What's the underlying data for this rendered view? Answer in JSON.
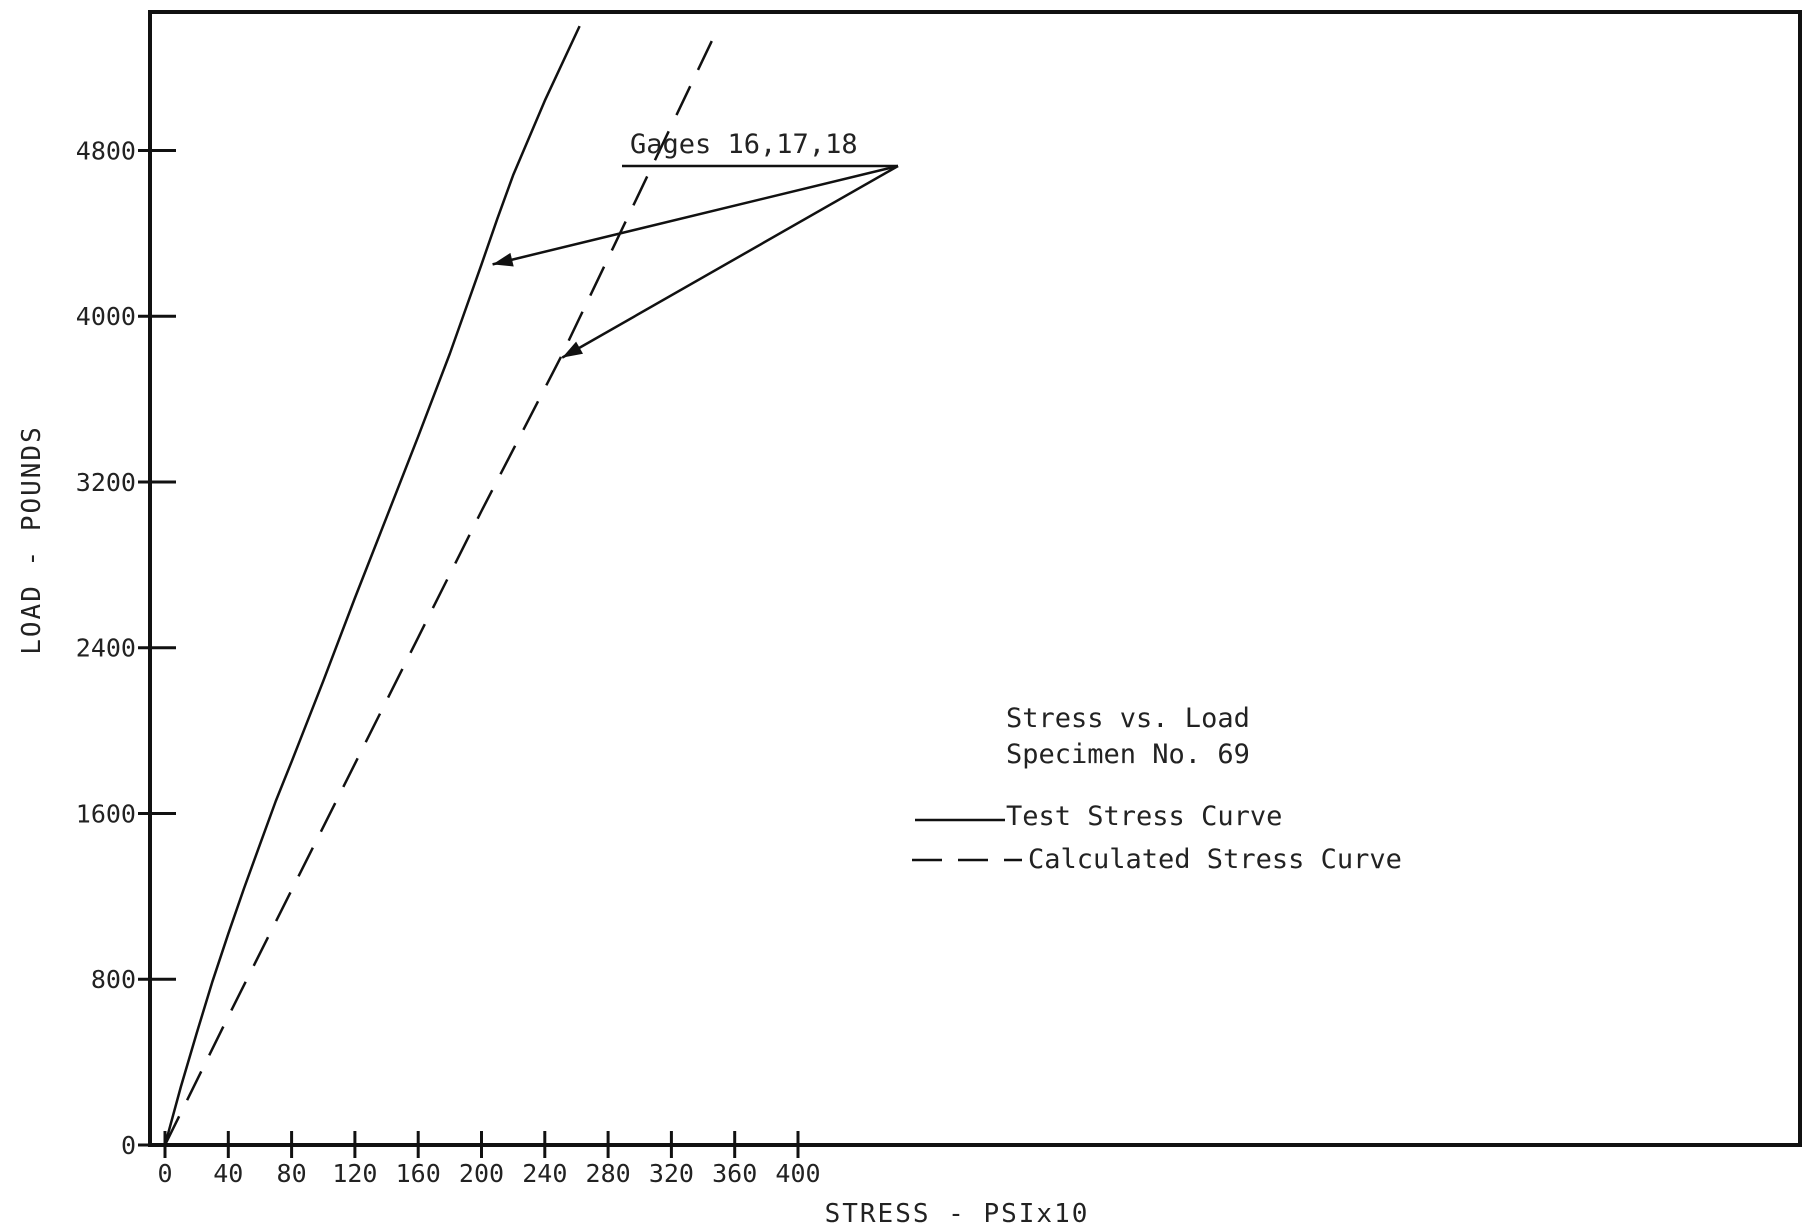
{
  "chart_data": {
    "type": "line",
    "xlabel": "STRESS - PSIx10",
    "ylabel": "LOAD - POUNDS",
    "xlim": [
      0,
      440
    ],
    "ylim": [
      0,
      5400
    ],
    "x_ticks": [
      "0",
      "40",
      "80",
      "120",
      "160",
      "200",
      "240",
      "280",
      "320",
      "360",
      "400"
    ],
    "y_ticks": [
      "0",
      "800",
      "1600",
      "2400",
      "3200",
      "4000",
      "4800"
    ],
    "grid": false,
    "legend_position": "center-right",
    "info_text": [
      "Stress vs. Load",
      "Specimen No. 69"
    ],
    "annotation": {
      "text": "Gages 16,17,18",
      "targets": [
        [
          207,
          4250
        ],
        [
          251,
          3800
        ]
      ]
    },
    "series": [
      {
        "name": "Test Stress Curve",
        "style": "solid",
        "x": [
          0,
          10,
          20,
          30,
          40,
          50,
          60,
          70,
          80,
          100,
          120,
          140,
          160,
          180,
          200,
          210,
          220,
          240,
          262
        ],
        "y": [
          0,
          280,
          540,
          790,
          1020,
          1240,
          1450,
          1660,
          1850,
          2240,
          2640,
          3030,
          3420,
          3820,
          4250,
          4470,
          4680,
          5040,
          5400
        ]
      },
      {
        "name": "Calculated Stress Curve",
        "style": "dashed",
        "x": [
          0,
          40,
          80,
          120,
          160,
          200,
          250,
          300,
          350
        ],
        "y": [
          0,
          620,
          1230,
          1840,
          2450,
          3060,
          3800,
          4600,
          5400
        ]
      }
    ]
  }
}
